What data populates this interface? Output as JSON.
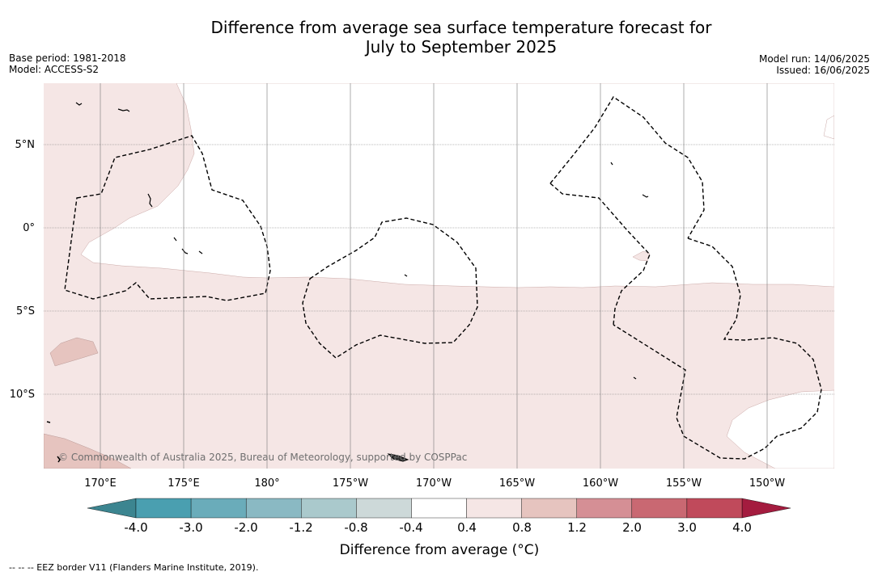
{
  "title_line1": "Difference from average sea surface temperature forecast for",
  "title_line2": "July to September 2025",
  "base_period": "Base period: 1981-2018",
  "model": "Model: ACCESS-S2",
  "model_run": "Model run: 14/06/2025",
  "issued": "Issued: 16/06/2025",
  "lat_labels": [
    "5°N",
    "0°",
    "5°S",
    "10°S"
  ],
  "lon_labels": [
    "170°E",
    "175°E",
    "180°",
    "175°W",
    "170°W",
    "165°W",
    "160°W",
    "155°W",
    "150°W"
  ],
  "copyright": "© Commonwealth of Australia 2025, Bureau of Meteorology, supported by COSPPac",
  "colorbar": {
    "ticks": [
      "-4.0",
      "-3.0",
      "-2.0",
      "-1.2",
      "-0.8",
      "-0.4",
      "0.4",
      "0.8",
      "1.2",
      "2.0",
      "3.0",
      "4.0"
    ],
    "colors": [
      "#4a9fb0",
      "#6aacba",
      "#8ab9c3",
      "#aac9cc",
      "#cdd9d9",
      "#ffffff",
      "#f5e6e5",
      "#e6c4bf",
      "#d58f95",
      "#c96872",
      "#c04a5b"
    ],
    "under_color": "#3c8590",
    "over_color": "#a41c3f",
    "title": "Difference from average (°C)"
  },
  "footnote": "--  --  -- EEZ border V11 (Flanders Marine Institute, 2019).",
  "colors": {
    "light_warm": "#f5e6e5",
    "warm": "#e6c4bf",
    "grid": "#777777"
  }
}
